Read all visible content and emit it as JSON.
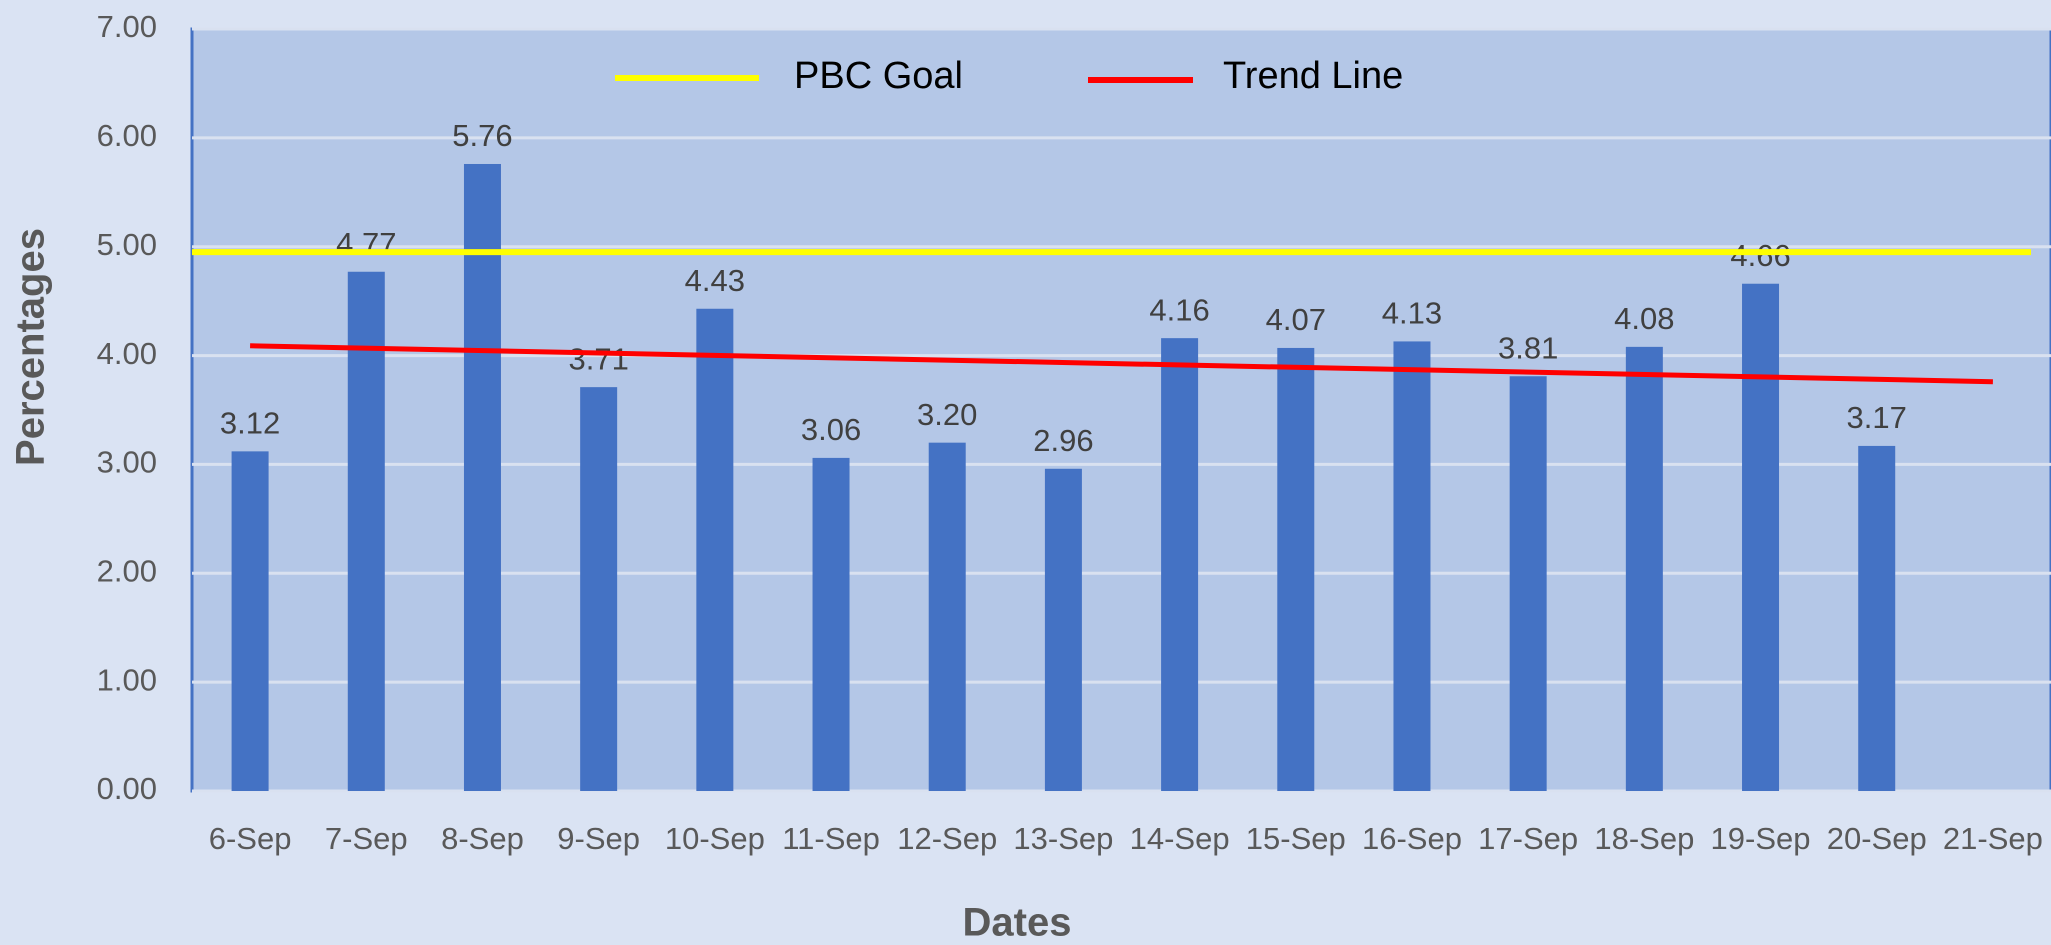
{
  "chart_data": {
    "type": "bar",
    "x_label": "Dates",
    "y_label": "Percentages",
    "categories": [
      "6-Sep",
      "7-Sep",
      "8-Sep",
      "9-Sep",
      "10-Sep",
      "11-Sep",
      "12-Sep",
      "13-Sep",
      "14-Sep",
      "15-Sep",
      "16-Sep",
      "17-Sep",
      "18-Sep",
      "19-Sep",
      "20-Sep",
      "21-Sep"
    ],
    "values": [
      3.12,
      4.77,
      5.76,
      3.71,
      4.43,
      3.06,
      3.2,
      2.96,
      4.16,
      4.07,
      4.13,
      3.81,
      4.08,
      4.66,
      3.17,
      null
    ],
    "value_labels": [
      "3.12",
      "4.77",
      "5.76",
      "3.71",
      "4.43",
      "3.06",
      "3.20",
      "2.96",
      "4.16",
      "4.07",
      "4.13",
      "3.81",
      "4.08",
      "4.66",
      "3.17",
      null
    ],
    "color": "#4472c4",
    "goal": {
      "name": "PBC Goal",
      "color": "#ffff00",
      "value": 4.95
    },
    "trend": {
      "name": "Trend Line",
      "color": "#ff0000",
      "start": 4.09,
      "end": 3.76
    },
    "ylim": [
      0,
      7
    ],
    "yticks": [
      {
        "value": 0,
        "label": "0.00"
      },
      {
        "value": 1,
        "label": "1.00"
      },
      {
        "value": 2,
        "label": "2.00"
      },
      {
        "value": 3,
        "label": "3.00"
      },
      {
        "value": 4,
        "label": "4.00"
      },
      {
        "value": 5,
        "label": "5.00"
      },
      {
        "value": 6,
        "label": "6.00"
      },
      {
        "value": 7,
        "label": "7.00"
      }
    ],
    "grid": true
  }
}
